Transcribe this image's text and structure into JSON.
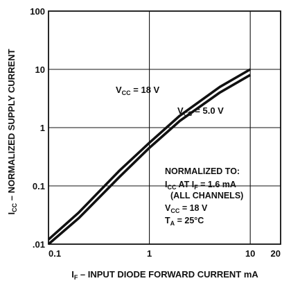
{
  "chart_data": {
    "type": "line",
    "xscale": "log",
    "yscale": "log",
    "xlim": [
      0.1,
      20
    ],
    "ylim": [
      0.01,
      100
    ],
    "grid": true,
    "x_ticks": [
      "0.1",
      "1",
      "10",
      "20"
    ],
    "y_ticks": [
      "100",
      "10",
      "1",
      "0.1",
      ".01"
    ],
    "xlabel": {
      "main": "I",
      "sub": "F",
      "rest": " – INPUT DIODE FORWARD CURRENT mA"
    },
    "ylabel": {
      "main": "I",
      "sub": "CC",
      "rest": " – NORMALIZED SUPPLY CURRENT"
    },
    "series": [
      {
        "name": "V_CC = 18 V",
        "label": {
          "main": "V",
          "sub": "CC",
          "rest": " = 18 V"
        },
        "x": [
          0.1,
          0.2,
          0.5,
          1,
          2,
          5,
          10
        ],
        "y": [
          0.012,
          0.035,
          0.18,
          0.55,
          1.6,
          5.0,
          10.0
        ]
      },
      {
        "name": "V_CC = 5.0 V",
        "label": {
          "main": "V",
          "sub": "CC",
          "rest": " = 5.0 V"
        },
        "x": [
          0.1,
          0.2,
          0.5,
          1,
          2,
          5,
          10
        ],
        "y": [
          0.01,
          0.028,
          0.14,
          0.45,
          1.3,
          4.0,
          8.0
        ]
      }
    ],
    "annotation": {
      "line1": "NORMALIZED TO:",
      "line2": {
        "a": "I",
        "a_sub": "CC",
        "b": " AT I",
        "b_sub": "F",
        "c": " = 1.6 mA"
      },
      "line3": "(ALL CHANNELS)",
      "line4": {
        "a": "V",
        "a_sub": "CC",
        "c": " = 18 V"
      },
      "line5": {
        "a": "T",
        "a_sub": "A",
        "c": " = 25°C"
      }
    }
  }
}
